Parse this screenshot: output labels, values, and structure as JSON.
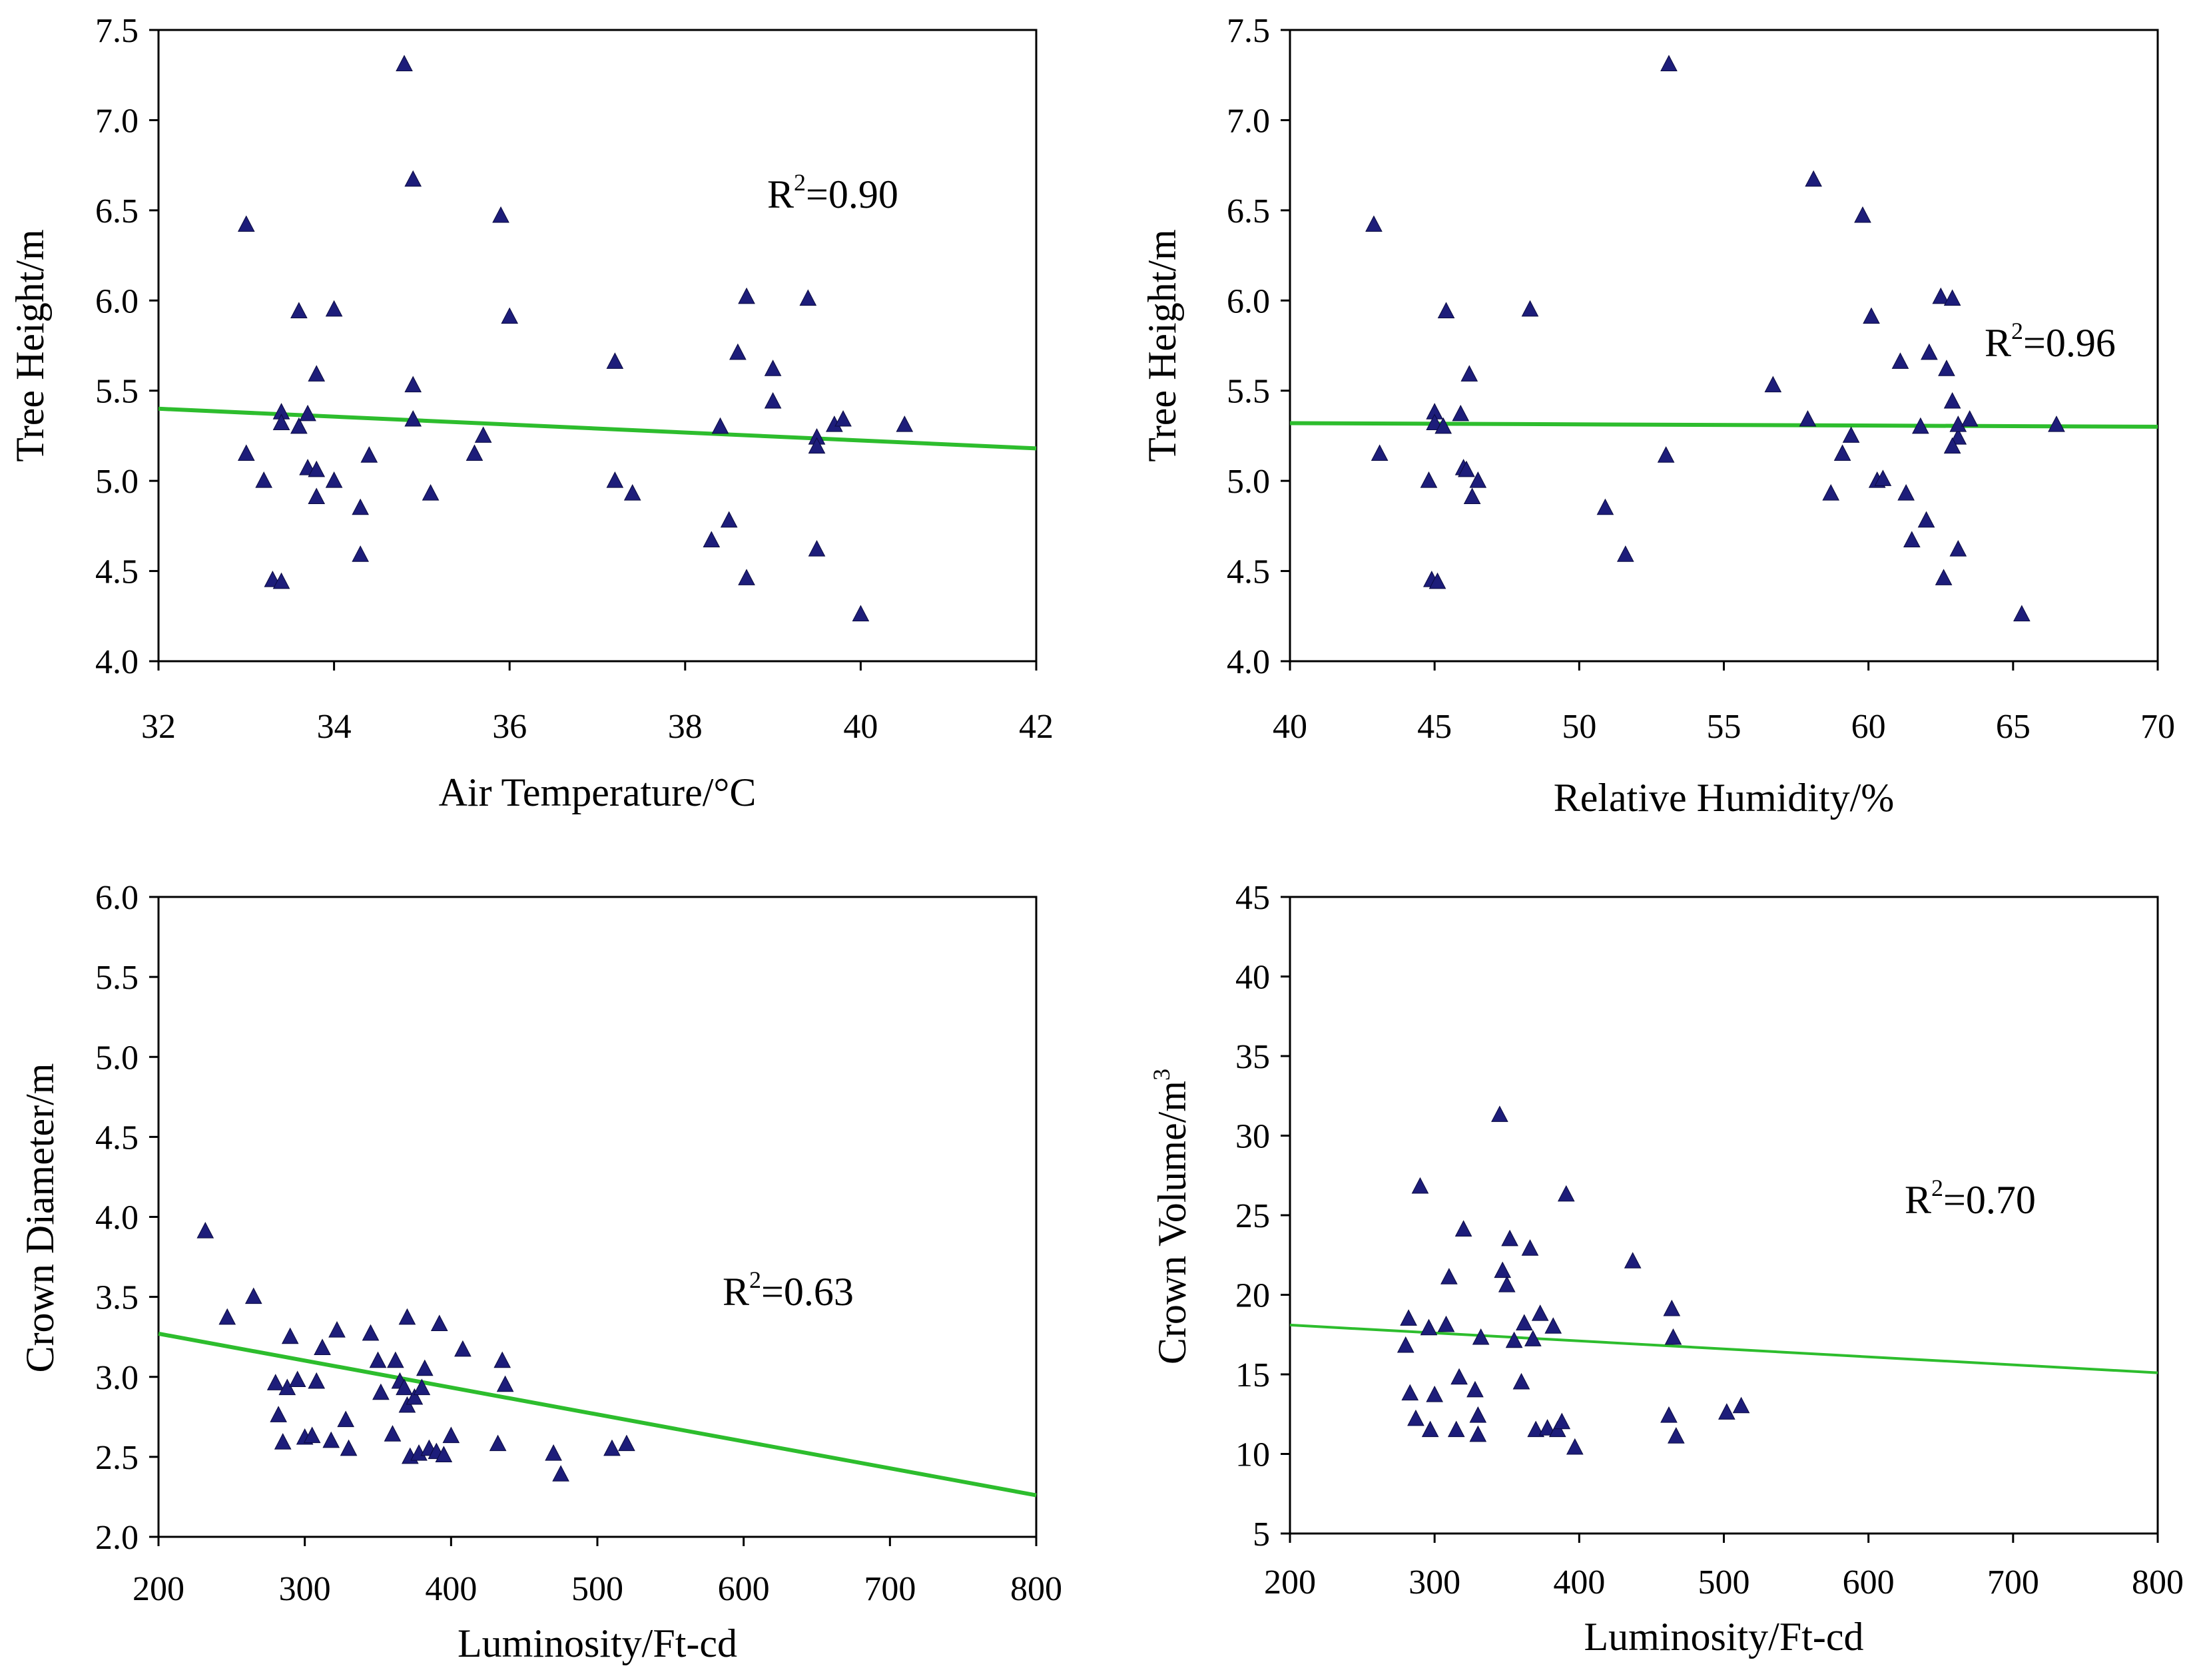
{
  "chart_data": [
    {
      "type": "scatter",
      "xlabel": "Air Temperature/°C",
      "ylabel": "Tree Height/m",
      "xlim": [
        32,
        42
      ],
      "ylim": [
        4.0,
        7.5
      ],
      "xticks": [
        32,
        34,
        36,
        38,
        40,
        42
      ],
      "yticks": [
        4.0,
        4.5,
        5.0,
        5.5,
        6.0,
        6.5,
        7.0,
        7.5
      ],
      "x_decimals": 0,
      "y_decimals": 1,
      "annotation": {
        "base": "R",
        "sup": "2",
        "rest": "=0.90"
      },
      "trendline": {
        "x": [
          32,
          42
        ],
        "y": [
          5.4,
          5.18
        ],
        "color": "#2dbd2d"
      },
      "marker_color": "#1d1d7a",
      "points": [
        [
          33.0,
          6.42
        ],
        [
          33.0,
          5.15
        ],
        [
          33.2,
          5.0
        ],
        [
          33.3,
          4.45
        ],
        [
          33.4,
          4.44
        ],
        [
          33.4,
          5.38
        ],
        [
          33.4,
          5.32
        ],
        [
          33.6,
          5.94
        ],
        [
          33.6,
          5.3
        ],
        [
          33.7,
          5.37
        ],
        [
          33.7,
          5.07
        ],
        [
          33.8,
          5.59
        ],
        [
          33.8,
          5.06
        ],
        [
          33.8,
          4.91
        ],
        [
          34.0,
          5.95
        ],
        [
          34.0,
          5.0
        ],
        [
          34.3,
          4.85
        ],
        [
          34.3,
          4.59
        ],
        [
          34.4,
          5.14
        ],
        [
          34.8,
          7.31
        ],
        [
          34.9,
          6.67
        ],
        [
          34.9,
          5.53
        ],
        [
          34.9,
          5.34
        ],
        [
          35.1,
          4.93
        ],
        [
          35.6,
          5.15
        ],
        [
          35.7,
          5.25
        ],
        [
          35.9,
          6.47
        ],
        [
          36.0,
          5.91
        ],
        [
          37.2,
          5.66
        ],
        [
          37.2,
          5.0
        ],
        [
          37.4,
          4.93
        ],
        [
          38.3,
          4.67
        ],
        [
          38.4,
          5.3
        ],
        [
          38.5,
          4.78
        ],
        [
          38.6,
          5.71
        ],
        [
          38.7,
          6.02
        ],
        [
          38.7,
          4.46
        ],
        [
          39.0,
          5.62
        ],
        [
          39.0,
          5.44
        ],
        [
          39.4,
          6.01
        ],
        [
          39.5,
          5.24
        ],
        [
          39.5,
          5.19
        ],
        [
          39.5,
          4.62
        ],
        [
          39.7,
          5.31
        ],
        [
          39.8,
          5.34
        ],
        [
          40.0,
          4.26
        ],
        [
          40.5,
          5.31
        ]
      ]
    },
    {
      "type": "scatter",
      "xlabel": "Relative Humidity/%",
      "ylabel": "Tree Height/m",
      "xlim": [
        40,
        70
      ],
      "ylim": [
        4.0,
        7.5
      ],
      "xticks": [
        40,
        45,
        50,
        55,
        60,
        65,
        70
      ],
      "yticks": [
        4.0,
        4.5,
        5.0,
        5.5,
        6.0,
        6.5,
        7.0,
        7.5
      ],
      "x_decimals": 0,
      "y_decimals": 1,
      "annotation": {
        "base": "R",
        "sup": "2",
        "rest": "=0.96"
      },
      "trendline": {
        "x": [
          40,
          70
        ],
        "y": [
          5.32,
          5.3
        ],
        "color": "#2dbd2d"
      },
      "marker_color": "#1d1d7a",
      "points": [
        [
          42.9,
          6.42
        ],
        [
          43.1,
          5.15
        ],
        [
          44.8,
          5.0
        ],
        [
          44.9,
          4.45
        ],
        [
          45.1,
          4.44
        ],
        [
          45.0,
          5.38
        ],
        [
          45.0,
          5.32
        ],
        [
          45.4,
          5.94
        ],
        [
          45.3,
          5.3
        ],
        [
          45.9,
          5.37
        ],
        [
          46.0,
          5.07
        ],
        [
          46.2,
          5.59
        ],
        [
          46.1,
          5.06
        ],
        [
          46.3,
          4.91
        ],
        [
          48.3,
          5.95
        ],
        [
          46.5,
          5.0
        ],
        [
          50.9,
          4.85
        ],
        [
          51.6,
          4.59
        ],
        [
          53.0,
          5.14
        ],
        [
          53.1,
          7.31
        ],
        [
          58.1,
          6.67
        ],
        [
          56.7,
          5.53
        ],
        [
          57.9,
          5.34
        ],
        [
          58.7,
          4.93
        ],
        [
          59.1,
          5.15
        ],
        [
          59.4,
          5.25
        ],
        [
          59.8,
          6.47
        ],
        [
          60.1,
          5.91
        ],
        [
          61.1,
          5.66
        ],
        [
          60.3,
          5.0
        ],
        [
          61.3,
          4.93
        ],
        [
          61.5,
          4.67
        ],
        [
          61.8,
          5.3
        ],
        [
          62.0,
          4.78
        ],
        [
          62.1,
          5.71
        ],
        [
          62.5,
          6.02
        ],
        [
          62.6,
          4.46
        ],
        [
          62.7,
          5.62
        ],
        [
          62.9,
          5.44
        ],
        [
          62.9,
          6.01
        ],
        [
          63.1,
          5.24
        ],
        [
          62.9,
          5.19
        ],
        [
          63.1,
          4.62
        ],
        [
          63.1,
          5.31
        ],
        [
          63.5,
          5.34
        ],
        [
          65.3,
          4.26
        ],
        [
          66.5,
          5.31
        ],
        [
          60.5,
          5.01
        ]
      ]
    },
    {
      "type": "scatter",
      "xlabel": "Luminosity/Ft-cd",
      "ylabel": "Crown Diameter/m",
      "xlim": [
        200,
        800
      ],
      "ylim": [
        2.0,
        6.0
      ],
      "xticks": [
        200,
        300,
        400,
        500,
        600,
        700,
        800
      ],
      "yticks": [
        2.0,
        2.5,
        3.0,
        3.5,
        4.0,
        4.5,
        5.0,
        5.5,
        6.0
      ],
      "x_decimals": 0,
      "y_decimals": 1,
      "annotation": {
        "base": "R",
        "sup": "2",
        "rest": "=0.63"
      },
      "trendline": {
        "x": [
          200,
          800
        ],
        "y": [
          3.27,
          2.26
        ],
        "color": "#2dbd2d"
      },
      "marker_color": "#1d1d7a",
      "points": [
        [
          232,
          3.91
        ],
        [
          247,
          3.37
        ],
        [
          265,
          3.5
        ],
        [
          280,
          2.96
        ],
        [
          282,
          2.76
        ],
        [
          285,
          2.59
        ],
        [
          288,
          2.93
        ],
        [
          290,
          3.25
        ],
        [
          295,
          2.98
        ],
        [
          300,
          2.62
        ],
        [
          305,
          2.63
        ],
        [
          308,
          2.97
        ],
        [
          312,
          3.18
        ],
        [
          318,
          2.6
        ],
        [
          322,
          3.29
        ],
        [
          328,
          2.73
        ],
        [
          330,
          2.55
        ],
        [
          345,
          3.27
        ],
        [
          350,
          3.1
        ],
        [
          352,
          2.9
        ],
        [
          360,
          2.64
        ],
        [
          362,
          3.1
        ],
        [
          365,
          2.97
        ],
        [
          368,
          2.93
        ],
        [
          370,
          3.37
        ],
        [
          370,
          2.82
        ],
        [
          372,
          2.5
        ],
        [
          375,
          2.87
        ],
        [
          378,
          2.52
        ],
        [
          380,
          2.93
        ],
        [
          382,
          3.05
        ],
        [
          385,
          2.55
        ],
        [
          390,
          2.53
        ],
        [
          392,
          3.33
        ],
        [
          395,
          2.51
        ],
        [
          400,
          2.63
        ],
        [
          408,
          3.17
        ],
        [
          432,
          2.58
        ],
        [
          435,
          3.1
        ],
        [
          437,
          2.95
        ],
        [
          470,
          2.52
        ],
        [
          475,
          2.39
        ],
        [
          510,
          2.55
        ],
        [
          520,
          2.58
        ]
      ]
    },
    {
      "type": "scatter",
      "xlabel": "Luminosity/Ft-cd",
      "ylabel": "Crown Volume/m",
      "ylabel_sup": "3",
      "xlim": [
        200,
        800
      ],
      "ylim": [
        5,
        45
      ],
      "xticks": [
        200,
        300,
        400,
        500,
        600,
        700,
        800
      ],
      "yticks": [
        5,
        10,
        15,
        20,
        25,
        30,
        35,
        40,
        45
      ],
      "x_decimals": 0,
      "y_decimals": 0,
      "annotation": {
        "base": "R",
        "sup": "2",
        "rest": "=0.70"
      },
      "trendline": {
        "x": [
          200,
          800
        ],
        "y": [
          18.1,
          15.1
        ],
        "color": "#2dbd2d"
      },
      "marker_color": "#1d1d7a",
      "points": [
        [
          280,
          16.8
        ],
        [
          282,
          18.5
        ],
        [
          283,
          13.8
        ],
        [
          287,
          12.2
        ],
        [
          290,
          26.8
        ],
        [
          296,
          17.9
        ],
        [
          297,
          11.5
        ],
        [
          300,
          13.7
        ],
        [
          308,
          18.1
        ],
        [
          310,
          21.1
        ],
        [
          315,
          11.5
        ],
        [
          317,
          14.8
        ],
        [
          320,
          24.1
        ],
        [
          328,
          14.0
        ],
        [
          330,
          11.2
        ],
        [
          330,
          12.4
        ],
        [
          332,
          17.3
        ],
        [
          345,
          31.3
        ],
        [
          347,
          21.5
        ],
        [
          350,
          20.6
        ],
        [
          352,
          23.5
        ],
        [
          355,
          17.1
        ],
        [
          360,
          14.5
        ],
        [
          362,
          18.2
        ],
        [
          366,
          22.9
        ],
        [
          368,
          17.2
        ],
        [
          370,
          11.5
        ],
        [
          373,
          18.8
        ],
        [
          378,
          11.6
        ],
        [
          382,
          18.0
        ],
        [
          385,
          11.5
        ],
        [
          388,
          12.0
        ],
        [
          391,
          26.3
        ],
        [
          397,
          10.4
        ],
        [
          437,
          22.1
        ],
        [
          462,
          12.4
        ],
        [
          464,
          19.1
        ],
        [
          465,
          17.3
        ],
        [
          467,
          11.1
        ],
        [
          502,
          12.6
        ],
        [
          512,
          13.0
        ]
      ]
    }
  ]
}
